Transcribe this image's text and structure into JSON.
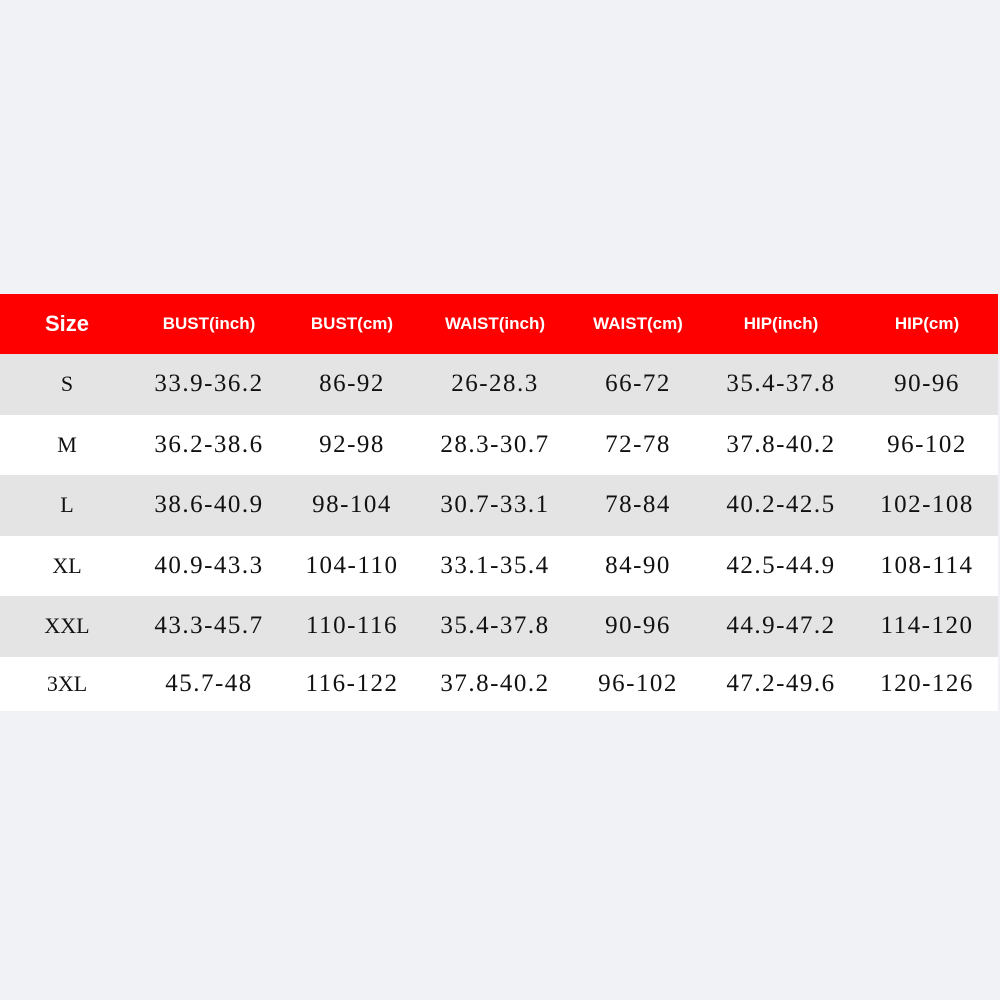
{
  "table": {
    "header": [
      "Size",
      "BUST(inch)",
      "BUST(cm)",
      "WAIST(inch)",
      "WAIST(cm)",
      "HIP(inch)",
      "HIP(cm)"
    ],
    "rows": [
      [
        "S",
        "33.9-36.2",
        "86-92",
        "26-28.3",
        "66-72",
        "35.4-37.8",
        "90-96"
      ],
      [
        "M",
        "36.2-38.6",
        "92-98",
        "28.3-30.7",
        "72-78",
        "37.8-40.2",
        "96-102"
      ],
      [
        "L",
        "38.6-40.9",
        "98-104",
        "30.7-33.1",
        "78-84",
        "40.2-42.5",
        "102-108"
      ],
      [
        "XL",
        "40.9-43.3",
        "104-110",
        "33.1-35.4",
        "84-90",
        "42.5-44.9",
        "108-114"
      ],
      [
        "XXL",
        "43.3-45.7",
        "110-116",
        "35.4-37.8",
        "90-96",
        "44.9-47.2",
        "114-120"
      ],
      [
        "3XL",
        "45.7-48",
        "116-122",
        "37.8-40.2",
        "96-102",
        "47.2-49.6",
        "120-126"
      ]
    ]
  }
}
